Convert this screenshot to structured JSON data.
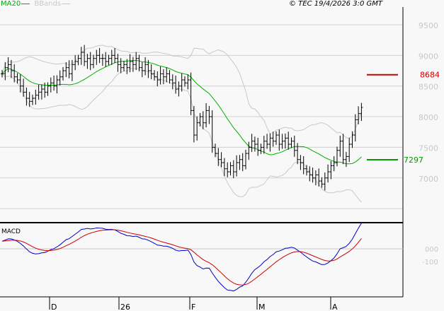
{
  "header": {
    "legend": [
      {
        "label": "MA20",
        "color": "#00b000"
      },
      {
        "label": "BBands",
        "color": "#c8c8c8"
      }
    ],
    "copyright": "© TEC 19/4/2026 3:0 GMT"
  },
  "chart_data": [
    {
      "type": "ohlc",
      "panel": "price",
      "ylim": [
        6500,
        9750
      ],
      "yticks": [
        7000,
        7500,
        8000,
        8500,
        9000,
        9500
      ],
      "ytick_labels": [
        "7000",
        "7500",
        "8000",
        "8500",
        "9000",
        "9500"
      ],
      "xtick_labels": [
        "D",
        "26",
        "F",
        "M",
        "A"
      ],
      "grid": true,
      "closes": [
        8700,
        8800,
        8850,
        8750,
        8650,
        8600,
        8500,
        8400,
        8300,
        8250,
        8300,
        8350,
        8400,
        8450,
        8400,
        8500,
        8550,
        8500,
        8600,
        8650,
        8750,
        8800,
        8700,
        8850,
        8900,
        8950,
        9050,
        8900,
        8950,
        8850,
        8950,
        9000,
        8950,
        8950,
        8900,
        8950,
        9000,
        8950,
        8850,
        8800,
        8850,
        8800,
        8900,
        8850,
        8950,
        8800,
        8750,
        8850,
        8750,
        8700,
        8650,
        8600,
        8700,
        8650,
        8700,
        8600,
        8550,
        8450,
        8500,
        8600,
        8550,
        8600,
        8100,
        7700,
        7900,
        8000,
        7900,
        8100,
        8000,
        7500,
        7400,
        7300,
        7250,
        7150,
        7100,
        7200,
        7100,
        7250,
        7300,
        7200,
        7400,
        7500,
        7600,
        7550,
        7450,
        7500,
        7600,
        7550,
        7650,
        7600,
        7700,
        7550,
        7600,
        7650,
        7550,
        7600,
        7450,
        7300,
        7250,
        7150,
        7100,
        7050,
        7000,
        7050,
        6950,
        6900,
        7000,
        7100,
        7200,
        7250,
        7450,
        7600,
        7300,
        7350,
        7550,
        7700,
        7950,
        8050,
        8150
      ],
      "overlays": [
        "MA20",
        "BBands"
      ],
      "levels": [
        {
          "value": 8684,
          "label": "8684",
          "color": "#cc0000"
        },
        {
          "value": 7297,
          "label": "7297",
          "color": "#009900"
        }
      ],
      "colors": {
        "bars": "#000000",
        "ma20": "#00b000",
        "bbands": "#c8c8c8"
      }
    },
    {
      "type": "line",
      "panel": "macd",
      "title": "MACD",
      "yticks": [
        0,
        -100
      ],
      "ytick_labels": [
        "000",
        "-100"
      ],
      "series_colors": {
        "macd": "#0000cc",
        "signal": "#cc0000"
      }
    }
  ]
}
